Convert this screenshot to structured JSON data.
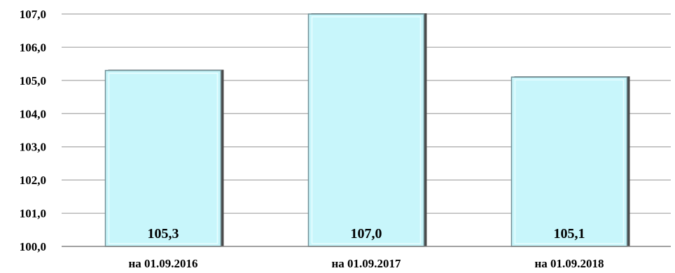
{
  "chart_data": {
    "type": "bar",
    "title": "",
    "xlabel": "",
    "ylabel": "",
    "categories": [
      "на 01.09.2016",
      "на 01.09.2017",
      "на 01.09.2018"
    ],
    "values": [
      105.3,
      107.0,
      105.1
    ],
    "data_labels": [
      "105,3",
      "107,0",
      "105,1"
    ],
    "ylim": [
      100,
      107
    ],
    "yticks": [
      100,
      101,
      102,
      103,
      104,
      105,
      106,
      107
    ],
    "ytick_labels": [
      "100,0",
      "101,0",
      "102,0",
      "103,0",
      "104,0",
      "105,0",
      "106,0",
      "107,0"
    ],
    "grid": true,
    "legend": "none",
    "colors": {
      "bar_fill": "#c8f6fb",
      "bar_edge": "#6f8f96",
      "bar_shadow": "#4a4a4a",
      "grid": "#a8a8a8",
      "axis": "#808080"
    }
  }
}
